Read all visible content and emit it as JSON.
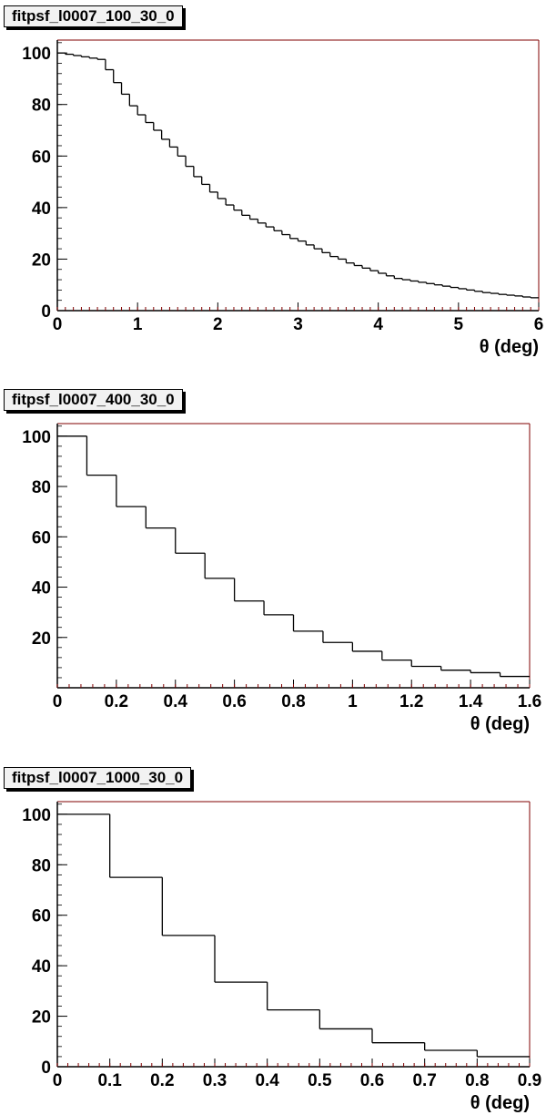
{
  "chart_data": [
    {
      "type": "histogram",
      "title": "fitpsf_l0007_100_30_0",
      "xlabel": "θ (deg)",
      "ylabel": "",
      "xlim": [
        0,
        6
      ],
      "ylim": [
        0,
        105
      ],
      "x_ticks": [
        "0",
        "1",
        "2",
        "3",
        "4",
        "5",
        "6"
      ],
      "y_ticks": [
        "0",
        "20",
        "40",
        "60",
        "80",
        "100"
      ],
      "bin_width": 0.1,
      "values": [
        100,
        99.5,
        99,
        98.5,
        98,
        97.5,
        93.5,
        88.5,
        84,
        79.5,
        76,
        73,
        70,
        66.5,
        63.5,
        60,
        56,
        52,
        49,
        46,
        43.5,
        41,
        39,
        37,
        35.5,
        34,
        32.5,
        31,
        29.5,
        28,
        27,
        25.5,
        24,
        22.5,
        21,
        20,
        18.5,
        17.5,
        16.5,
        15.5,
        14.5,
        13.5,
        12.5,
        12,
        11.5,
        11,
        10.5,
        10,
        9.5,
        9,
        8.5,
        8,
        7.5,
        7,
        6.7,
        6.3,
        6,
        5.7,
        5.3,
        5
      ]
    },
    {
      "type": "histogram",
      "title": "fitpsf_l0007_400_30_0",
      "xlabel": "θ (deg)",
      "ylabel": "",
      "xlim": [
        0,
        1.6
      ],
      "ylim": [
        0,
        105
      ],
      "x_ticks": [
        "0",
        "0.2",
        "0.4",
        "0.6",
        "0.8",
        "1",
        "1.2",
        "1.4",
        "1.6"
      ],
      "y_ticks": [
        "20",
        "40",
        "60",
        "80",
        "100"
      ],
      "bin_width": 0.1,
      "values": [
        100,
        84.5,
        72,
        63.5,
        53.5,
        43.5,
        34.5,
        29,
        22.5,
        18,
        14.5,
        11,
        8.5,
        7,
        6,
        4.5
      ]
    },
    {
      "type": "histogram",
      "title": "fitpsf_l0007_1000_30_0",
      "xlabel": "θ (deg)",
      "ylabel": "",
      "xlim": [
        0,
        0.9
      ],
      "ylim": [
        0,
        105
      ],
      "x_ticks": [
        "0",
        "0.1",
        "0.2",
        "0.3",
        "0.4",
        "0.5",
        "0.6",
        "0.7",
        "0.8",
        "0.9"
      ],
      "y_ticks": [
        "0",
        "20",
        "40",
        "60",
        "80",
        "100"
      ],
      "bin_width": 0.1,
      "values": [
        100,
        75,
        52,
        33.5,
        22.5,
        15,
        9.5,
        6.5,
        4
      ]
    }
  ]
}
